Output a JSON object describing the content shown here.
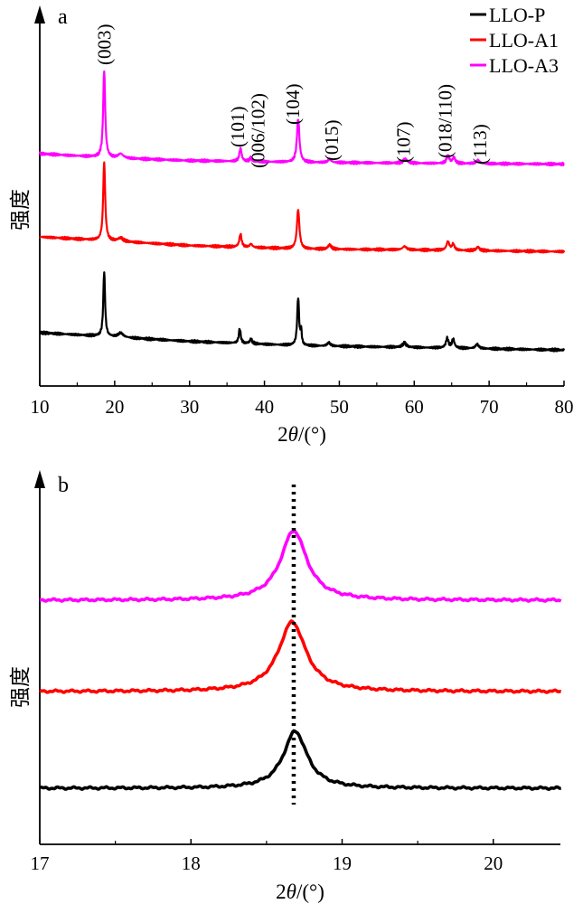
{
  "chart_data": [
    {
      "panel_label": "a",
      "type": "line",
      "ylabel": "强度",
      "xlabel_prefix": "2",
      "xlabel_var": "θ",
      "xlabel_suffix": "/(°)",
      "xlim": [
        10,
        80
      ],
      "xticks": [
        10,
        20,
        30,
        40,
        50,
        60,
        70,
        80
      ],
      "y_axis": "arbitrary intensity, curves vertically offset",
      "legend": {
        "position": "top-right",
        "entries": [
          {
            "label": "LLO-P",
            "color": "#000000"
          },
          {
            "label": "LLO-A1",
            "color": "#ff0000"
          },
          {
            "label": "LLO-A3",
            "color": "#ff00ff"
          }
        ]
      },
      "annotations": [
        {
          "text": "(003)",
          "x": 18.6
        },
        {
          "text": "(101)",
          "x": 36.7
        },
        {
          "text": "(006/102)",
          "x": 38.2
        },
        {
          "text": "(104)",
          "x": 44.5
        },
        {
          "text": "(015)",
          "x": 48.6
        },
        {
          "text": "(107)",
          "x": 58.6
        },
        {
          "text": "(018/110)",
          "x": 64.6
        },
        {
          "text": "(113)",
          "x": 68.4
        }
      ],
      "series": [
        {
          "name": "LLO-P",
          "color": "#000000",
          "baseline": [
            [
              10,
              0.0
            ],
            [
              20,
              -0.05
            ],
            [
              30,
              -0.1
            ],
            [
              45,
              -0.15
            ],
            [
              60,
              -0.17
            ],
            [
              80,
              -0.2
            ]
          ],
          "peaks": [
            {
              "x": 18.6,
              "h": 0.75,
              "w": 0.14
            },
            {
              "x": 20.8,
              "h": 0.05,
              "w": 0.4
            },
            {
              "x": 36.7,
              "h": 0.17,
              "w": 0.15
            },
            {
              "x": 38.2,
              "h": 0.05,
              "w": 0.2
            },
            {
              "x": 44.5,
              "h": 0.55,
              "w": 0.15
            },
            {
              "x": 44.9,
              "h": 0.15,
              "w": 0.1
            },
            {
              "x": 48.6,
              "h": 0.04,
              "w": 0.25
            },
            {
              "x": 58.7,
              "h": 0.05,
              "w": 0.3
            },
            {
              "x": 64.4,
              "h": 0.11,
              "w": 0.2
            },
            {
              "x": 65.2,
              "h": 0.1,
              "w": 0.2
            },
            {
              "x": 68.4,
              "h": 0.05,
              "w": 0.25
            }
          ]
        },
        {
          "name": "LLO-A1",
          "color": "#ff0000",
          "baseline": [
            [
              10,
              0.0
            ],
            [
              20,
              -0.05
            ],
            [
              30,
              -0.1
            ],
            [
              45,
              -0.14
            ],
            [
              60,
              -0.15
            ],
            [
              80,
              -0.17
            ]
          ],
          "peaks": [
            {
              "x": 18.6,
              "h": 0.9,
              "w": 0.16
            },
            {
              "x": 20.8,
              "h": 0.04,
              "w": 0.4
            },
            {
              "x": 36.8,
              "h": 0.15,
              "w": 0.18
            },
            {
              "x": 38.2,
              "h": 0.04,
              "w": 0.2
            },
            {
              "x": 44.5,
              "h": 0.45,
              "w": 0.2
            },
            {
              "x": 48.7,
              "h": 0.05,
              "w": 0.25
            },
            {
              "x": 58.7,
              "h": 0.04,
              "w": 0.3
            },
            {
              "x": 64.5,
              "h": 0.1,
              "w": 0.22
            },
            {
              "x": 65.2,
              "h": 0.07,
              "w": 0.2
            },
            {
              "x": 68.5,
              "h": 0.04,
              "w": 0.25
            }
          ]
        },
        {
          "name": "LLO-A3",
          "color": "#ff00ff",
          "baseline": [
            [
              10,
              0.0
            ],
            [
              20,
              -0.05
            ],
            [
              30,
              -0.08
            ],
            [
              45,
              -0.1
            ],
            [
              60,
              -0.11
            ],
            [
              80,
              -0.12
            ]
          ],
          "peaks": [
            {
              "x": 18.6,
              "h": 1.0,
              "w": 0.16
            },
            {
              "x": 20.8,
              "h": 0.05,
              "w": 0.4
            },
            {
              "x": 36.8,
              "h": 0.15,
              "w": 0.18
            },
            {
              "x": 38.2,
              "h": 0.04,
              "w": 0.2
            },
            {
              "x": 44.5,
              "h": 0.5,
              "w": 0.2
            },
            {
              "x": 48.7,
              "h": 0.04,
              "w": 0.25
            },
            {
              "x": 58.8,
              "h": 0.05,
              "w": 0.3
            },
            {
              "x": 64.5,
              "h": 0.09,
              "w": 0.22
            },
            {
              "x": 65.3,
              "h": 0.07,
              "w": 0.2
            },
            {
              "x": 68.5,
              "h": 0.04,
              "w": 0.25
            }
          ]
        }
      ]
    },
    {
      "panel_label": "b",
      "type": "line",
      "ylabel": "强度",
      "xlabel_prefix": "2",
      "xlabel_var": "θ",
      "xlabel_suffix": "/(°)",
      "xlim": [
        17,
        20.45
      ],
      "xticks": [
        17,
        18,
        19,
        20
      ],
      "y_axis": "arbitrary intensity, curves vertically offset",
      "reference_line": {
        "x": 18.68,
        "style": "dotted",
        "color": "#000000"
      },
      "series": [
        {
          "name": "LLO-P",
          "color": "#000000",
          "peak_x": 18.69,
          "height": 0.9,
          "fwhm": 0.19
        },
        {
          "name": "LLO-A1",
          "color": "#ff0000",
          "peak_x": 18.67,
          "height": 1.1,
          "fwhm": 0.22
        },
        {
          "name": "LLO-A3",
          "color": "#ff00ff",
          "peak_x": 18.68,
          "height": 1.1,
          "fwhm": 0.21
        }
      ]
    }
  ]
}
